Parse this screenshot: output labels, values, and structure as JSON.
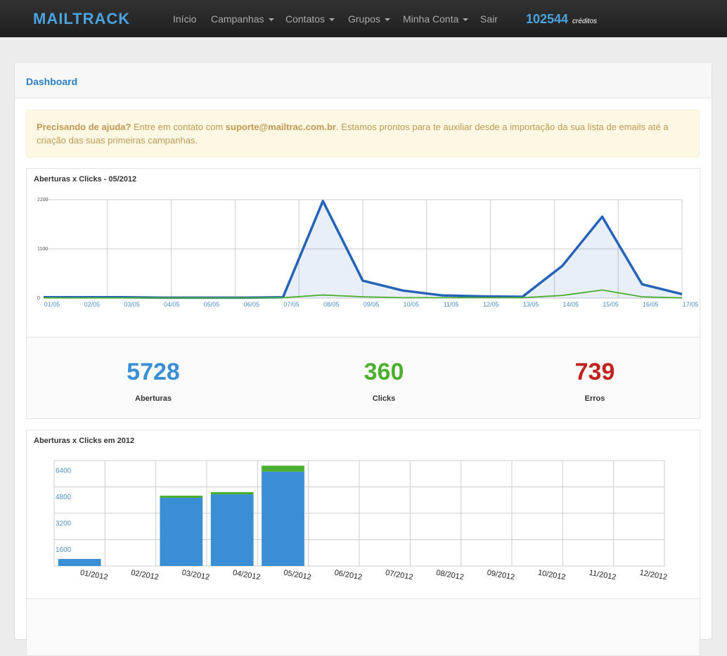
{
  "nav": {
    "logo": "MAILTRACK",
    "items": [
      "Início",
      "Campanhas",
      "Contatos",
      "Grupos",
      "Minha Conta",
      "Sair"
    ],
    "credits": 102544,
    "credits_label": "créditos"
  },
  "panel_title": "Dashboard",
  "alert": {
    "strong": "Precisando de ajuda?",
    "text1": "Entre em contato com",
    "email": "suporte@mailtrac.com.br",
    "text2": ". Estamos prontos para te auxiliar desde a importação da sua lista de emails até a criação das suas primeiras campanhas."
  },
  "chart_data": [
    {
      "type": "line",
      "title": "Aberturas x Clicks - 05/2012",
      "categories": [
        "01/05",
        "02/05",
        "03/05",
        "04/05",
        "05/05",
        "06/05",
        "07/05",
        "08/05",
        "09/05",
        "10/05",
        "11/05",
        "12/05",
        "13/05",
        "14/05",
        "15/05",
        "16/05",
        "17/05"
      ],
      "series": [
        {
          "color": "#2563b8",
          "values": [
            20,
            20,
            20,
            10,
            10,
            10,
            20,
            2170,
            390,
            170,
            60,
            40,
            30,
            720,
            1820,
            310,
            90
          ]
        },
        {
          "color": "#4caf30",
          "values": [
            5,
            5,
            5,
            5,
            5,
            5,
            10,
            70,
            30,
            10,
            10,
            10,
            10,
            60,
            180,
            30,
            5
          ]
        }
      ],
      "ylim": [
        0,
        2200
      ],
      "yticks": [
        0,
        1100,
        2200
      ],
      "grid": true
    },
    {
      "type": "bar",
      "stacked": true,
      "title": "Aberturas x Clicks em 2012",
      "categories": [
        "01/2012",
        "02/2012",
        "03/2012",
        "04/2012",
        "05/2012",
        "06/2012",
        "07/2012",
        "08/2012",
        "09/2012",
        "10/2012",
        "11/2012",
        "12/2012"
      ],
      "series": [
        {
          "color": "#3a8fd4",
          "values": [
            430,
            0,
            4140,
            4350,
            5728,
            0,
            0,
            0,
            0,
            0,
            0,
            0
          ]
        },
        {
          "color": "#4caf30",
          "values": [
            0,
            0,
            130,
            130,
            360,
            0,
            0,
            0,
            0,
            0,
            0,
            0
          ]
        }
      ],
      "ylim": [
        0,
        6400
      ],
      "yticks": [
        1600,
        3200,
        4800,
        6400
      ],
      "grid": true
    }
  ],
  "stats": [
    {
      "value": 5728,
      "label": "Aberturas",
      "color": "#3a8fd4"
    },
    {
      "value": 360,
      "label": "Clicks",
      "color": "#4caf30"
    },
    {
      "value": 739,
      "label": "Erros",
      "color": "#c0231e"
    }
  ]
}
